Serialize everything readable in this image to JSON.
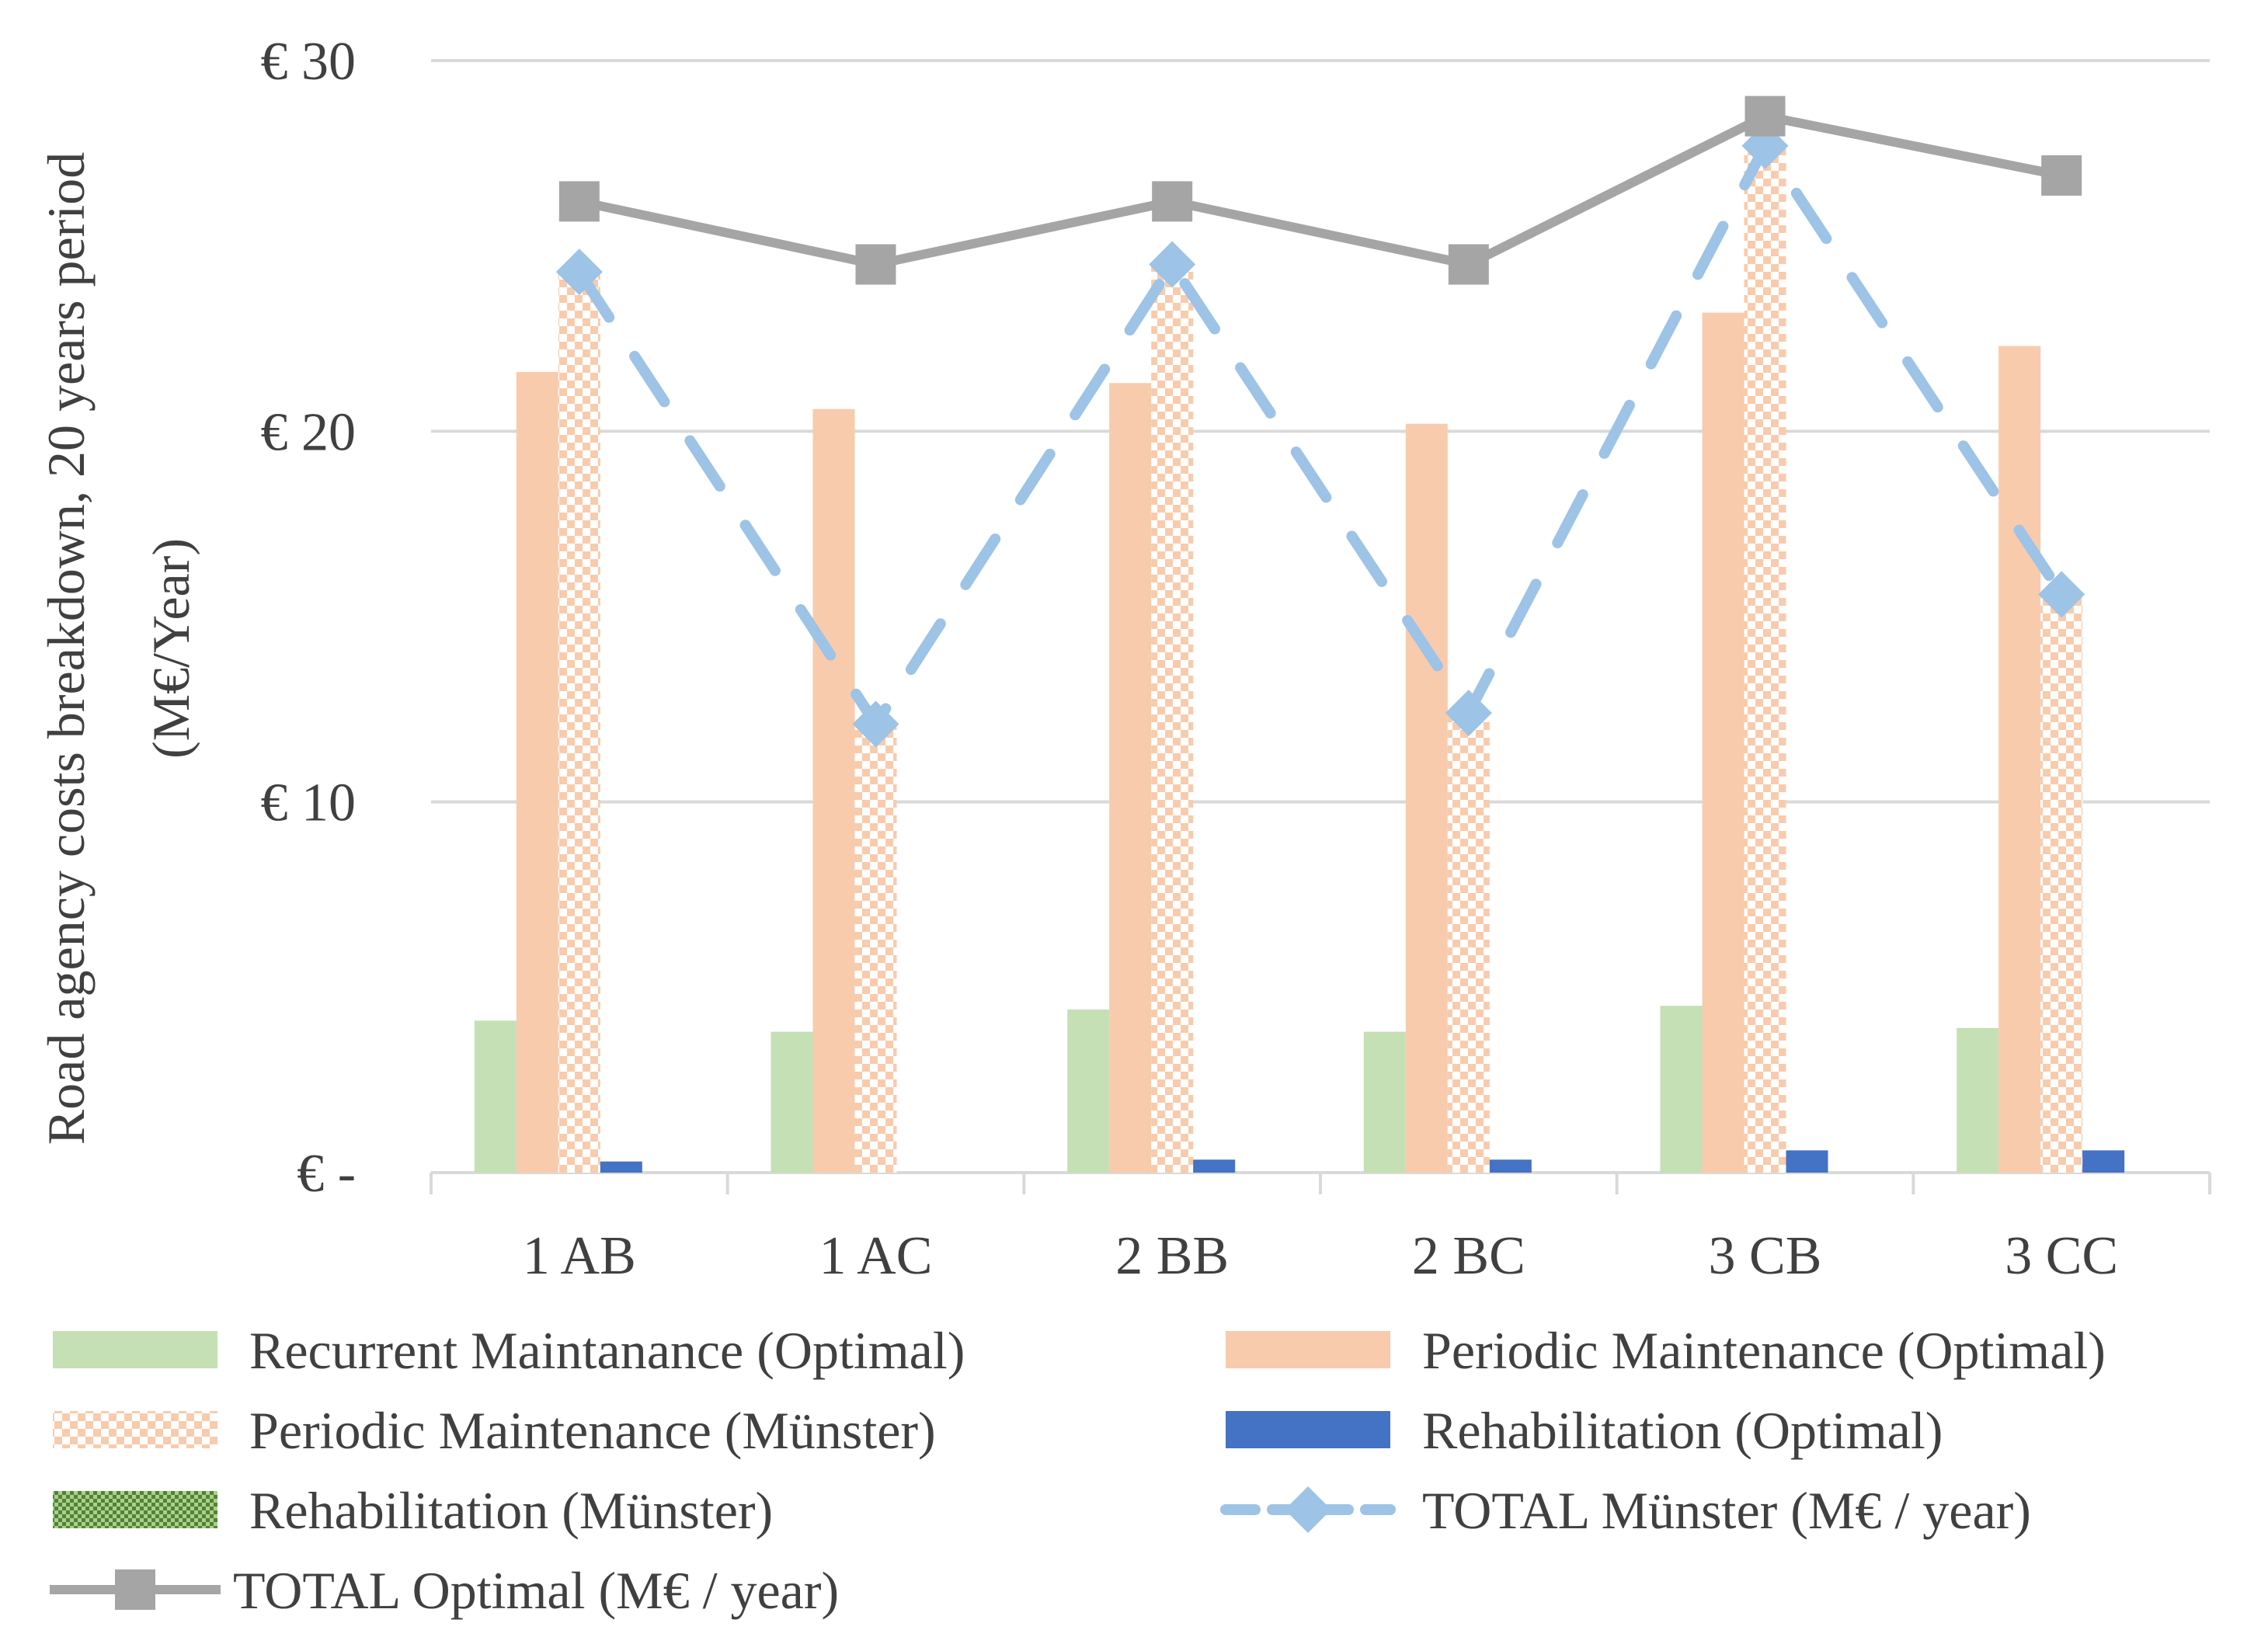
{
  "chart_data": {
    "type": "bar",
    "title": "",
    "ylabel_line1": "Road agency costs breakdown, 20 years period",
    "ylabel_line2": "(M€/Year)",
    "xlabel": "",
    "ylim": [
      0,
      30
    ],
    "y_ticks": [
      {
        "value": 0,
        "label": "€ -"
      },
      {
        "value": 10,
        "label": "€ 10"
      },
      {
        "value": 20,
        "label": "€ 20"
      },
      {
        "value": 30,
        "label": "€ 30"
      }
    ],
    "grid": true,
    "legend_position": "bottom",
    "categories": [
      "1 AB",
      "1 AC",
      "2 BB",
      "2 BC",
      "3 CB",
      "3 CC"
    ],
    "series": [
      {
        "name": "Recurrent Maintanance (Optimal)",
        "kind": "bar",
        "style": "solid",
        "color": "#c5e0b4",
        "values": [
          4.1,
          3.8,
          4.4,
          3.8,
          4.5,
          3.9
        ]
      },
      {
        "name": "Periodic Maintenance (Optimal)",
        "kind": "bar",
        "style": "solid",
        "color": "#f8cbad",
        "values": [
          21.6,
          20.6,
          21.3,
          20.2,
          23.2,
          22.3
        ]
      },
      {
        "name": "Periodic Maintenance (Münster)",
        "kind": "bar",
        "style": "checker",
        "color": "#f8cbad",
        "values": [
          24.3,
          12.1,
          24.5,
          12.4,
          27.7,
          15.6
        ]
      },
      {
        "name": "Rehabilitation (Optimal)",
        "kind": "bar",
        "style": "solid",
        "color": "#4472c4",
        "values": [
          0.3,
          0.0,
          0.35,
          0.35,
          0.6,
          0.6
        ]
      },
      {
        "name": "Rehabilitation (Münster)",
        "kind": "bar",
        "style": "checker",
        "color": "#548235",
        "values": [
          0,
          0,
          0,
          0,
          0,
          0
        ]
      },
      {
        "name": "TOTAL Münster (M€ / year)",
        "kind": "line",
        "style": "dashed-diamond",
        "color": "#9dc3e6",
        "values": [
          24.3,
          12.1,
          24.5,
          12.4,
          27.7,
          15.6
        ]
      },
      {
        "name": "TOTAL Optimal (M€ / year)",
        "kind": "line",
        "style": "solid-square",
        "color": "#a5a5a5",
        "values": [
          26.2,
          24.5,
          26.2,
          24.5,
          28.5,
          26.9
        ]
      }
    ]
  }
}
